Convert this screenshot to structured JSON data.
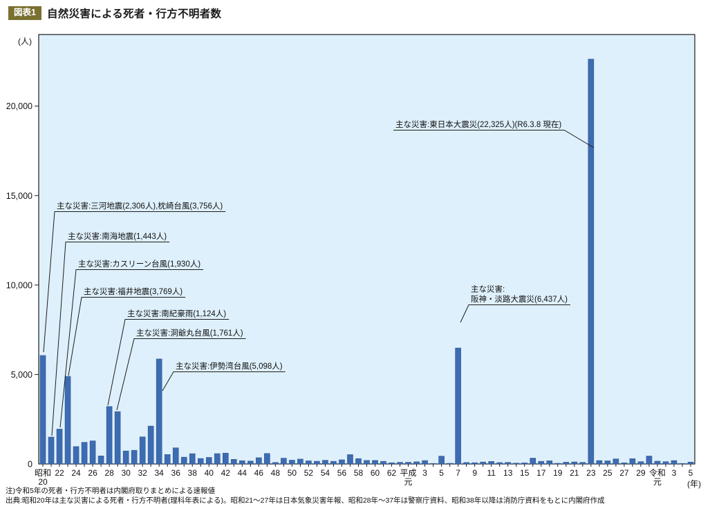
{
  "header": {
    "badge": "図表1",
    "title": "自然災害による死者・行方不明者数"
  },
  "footer": {
    "note": "注)令和5年の死者・行方不明者は内閣府取りまとめによる速報値",
    "source": "出典:昭和20年は主な災害による死者・行方不明者(理科年表による)。昭和21〜27年は日本気象災害年報、昭和28年〜37年は警察庁資料、昭和38年以降は消防庁資料をもとに内閣府作成"
  },
  "chart_data": {
    "type": "bar",
    "title": "自然災害による死者・行方不明者数",
    "ylabel_unit": "(人)",
    "xlabel_unit": "(年)",
    "ylim": [
      0,
      24000
    ],
    "yticks": [
      0,
      5000,
      10000,
      15000,
      20000
    ],
    "ytick_labels": [
      "0",
      "5,000",
      "10,000",
      "15,000",
      "20,000"
    ],
    "bar_color": "#3e6cb2",
    "bar_edge_color": "#2e5894",
    "plot_bg": "#def0fb",
    "plot_border": "#1c1c1c",
    "legend": "none",
    "grid": "off",
    "categories": [
      "昭和20",
      "昭和21",
      "昭和22",
      "昭和23",
      "昭和24",
      "昭和25",
      "昭和26",
      "昭和27",
      "昭和28",
      "昭和29",
      "昭和30",
      "昭和31",
      "昭和32",
      "昭和33",
      "昭和34",
      "昭和35",
      "昭和36",
      "昭和37",
      "昭和38",
      "昭和39",
      "昭和40",
      "昭和41",
      "昭和42",
      "昭和43",
      "昭和44",
      "昭和45",
      "昭和46",
      "昭和47",
      "昭和48",
      "昭和49",
      "昭和50",
      "昭和51",
      "昭和52",
      "昭和53",
      "昭和54",
      "昭和55",
      "昭和56",
      "昭和57",
      "昭和58",
      "昭和59",
      "昭和60",
      "昭和61",
      "昭和62",
      "昭和63",
      "平成元",
      "平成2",
      "平成3",
      "平成4",
      "平成5",
      "平成6",
      "平成7",
      "平成8",
      "平成9",
      "平成10",
      "平成11",
      "平成12",
      "平成13",
      "平成14",
      "平成15",
      "平成16",
      "平成17",
      "平成18",
      "平成19",
      "平成20",
      "平成21",
      "平成22",
      "平成23",
      "平成24",
      "平成25",
      "平成26",
      "平成27",
      "平成28",
      "平成29",
      "平成30",
      "令和元",
      "令和2",
      "令和3",
      "令和4",
      "令和5"
    ],
    "values": [
      6062,
      1504,
      1950,
      4897,
      975,
      1210,
      1291,
      449,
      3212,
      2926,
      727,
      765,
      1515,
      2120,
      5868,
      528,
      902,
      381,
      575,
      307,
      367,
      578,
      607,
      259,
      183,
      163,
      350,
      587,
      85,
      324,
      213,
      273,
      174,
      153,
      208,
      148,
      232,
      524,
      301,
      199,
      199,
      148,
      69,
      93,
      96,
      123,
      190,
      19,
      438,
      39,
      6482,
      84,
      71,
      109,
      141,
      78,
      90,
      48,
      62,
      327,
      148,
      177,
      39,
      101,
      115,
      89,
      22626,
      190,
      175,
      283,
      66,
      297,
      129,
      444,
      156,
      128,
      190,
      25,
      106
    ],
    "xticks": [
      {
        "i": 0,
        "lines": [
          "昭和",
          "20"
        ]
      },
      {
        "i": 2,
        "lines": [
          "22"
        ]
      },
      {
        "i": 4,
        "lines": [
          "24"
        ]
      },
      {
        "i": 6,
        "lines": [
          "26"
        ]
      },
      {
        "i": 8,
        "lines": [
          "28"
        ]
      },
      {
        "i": 10,
        "lines": [
          "30"
        ]
      },
      {
        "i": 12,
        "lines": [
          "32"
        ]
      },
      {
        "i": 14,
        "lines": [
          "34"
        ]
      },
      {
        "i": 16,
        "lines": [
          "36"
        ]
      },
      {
        "i": 18,
        "lines": [
          "38"
        ]
      },
      {
        "i": 20,
        "lines": [
          "40"
        ]
      },
      {
        "i": 22,
        "lines": [
          "42"
        ]
      },
      {
        "i": 24,
        "lines": [
          "44"
        ]
      },
      {
        "i": 26,
        "lines": [
          "46"
        ]
      },
      {
        "i": 28,
        "lines": [
          "48"
        ]
      },
      {
        "i": 30,
        "lines": [
          "50"
        ]
      },
      {
        "i": 32,
        "lines": [
          "52"
        ]
      },
      {
        "i": 34,
        "lines": [
          "54"
        ]
      },
      {
        "i": 36,
        "lines": [
          "56"
        ]
      },
      {
        "i": 38,
        "lines": [
          "58"
        ]
      },
      {
        "i": 40,
        "lines": [
          "60"
        ]
      },
      {
        "i": 42,
        "lines": [
          "62"
        ]
      },
      {
        "i": 44,
        "lines": [
          "平成",
          "元"
        ]
      },
      {
        "i": 46,
        "lines": [
          "3"
        ]
      },
      {
        "i": 48,
        "lines": [
          "5"
        ]
      },
      {
        "i": 50,
        "lines": [
          "7"
        ]
      },
      {
        "i": 52,
        "lines": [
          "9"
        ]
      },
      {
        "i": 54,
        "lines": [
          "11"
        ]
      },
      {
        "i": 56,
        "lines": [
          "13"
        ]
      },
      {
        "i": 58,
        "lines": [
          "15"
        ]
      },
      {
        "i": 60,
        "lines": [
          "17"
        ]
      },
      {
        "i": 62,
        "lines": [
          "19"
        ]
      },
      {
        "i": 64,
        "lines": [
          "21"
        ]
      },
      {
        "i": 66,
        "lines": [
          "23"
        ]
      },
      {
        "i": 68,
        "lines": [
          "25"
        ]
      },
      {
        "i": 70,
        "lines": [
          "27"
        ]
      },
      {
        "i": 72,
        "lines": [
          "29"
        ]
      },
      {
        "i": 74,
        "lines": [
          "令和",
          "元"
        ]
      },
      {
        "i": 76,
        "lines": [
          "3"
        ]
      },
      {
        "i": 78,
        "lines": [
          "5"
        ]
      }
    ],
    "annotations": [
      {
        "year": "昭和20",
        "lines": [
          "主な災害:三河地震(2,306人),枕崎台風(3,756人)"
        ]
      },
      {
        "year": "昭和21",
        "lines": [
          "主な災害:南海地震(1,443人)"
        ]
      },
      {
        "year": "昭和22",
        "lines": [
          "主な災害:カスリーン台風(1,930人)"
        ]
      },
      {
        "year": "昭和23",
        "lines": [
          "主な災害:福井地震(3,769人)"
        ]
      },
      {
        "year": "昭和28",
        "lines": [
          "主な災害:南紀豪雨(1,124人)"
        ]
      },
      {
        "year": "昭和29",
        "lines": [
          "主な災害:洞爺丸台風(1,761人)"
        ]
      },
      {
        "year": "昭和34",
        "lines": [
          "主な災害:伊勢湾台風(5,098人)"
        ]
      },
      {
        "year": "平成23",
        "lines": [
          "主な災害:東日本大震災(22,325人)(R6.3.8 現在)"
        ]
      },
      {
        "year": "平成7",
        "lines": [
          "主な災害:",
          "阪神・淡路大震災(6,437人)"
        ]
      }
    ]
  }
}
